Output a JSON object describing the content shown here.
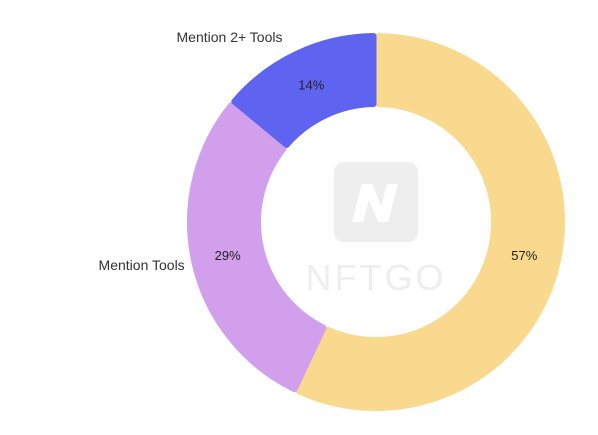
{
  "chart_data": {
    "type": "pie",
    "donut": true,
    "title": "",
    "series": [
      {
        "slices": [
          {
            "label": "",
            "value": 57,
            "display": "57%",
            "color": "#F9D98E"
          },
          {
            "label": "Mention Tools",
            "value": 29,
            "display": "29%",
            "color": "#D19FEC"
          },
          {
            "label": "Mention 2+ Tools",
            "value": 14,
            "display": "14%",
            "color": "#5E63F0"
          }
        ]
      }
    ],
    "legend": "none"
  },
  "watermark": {
    "text": "NFTGO",
    "icon": "nftgo-logo-icon",
    "color": "#eeeeee"
  }
}
